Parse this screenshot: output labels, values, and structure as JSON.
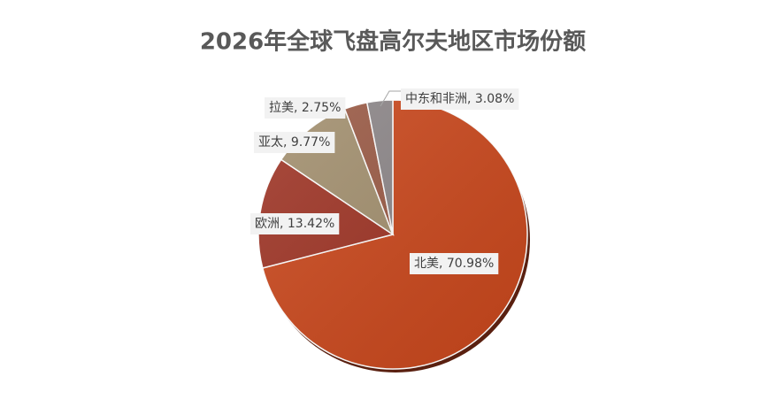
{
  "chart_data": {
    "type": "pie",
    "title": "2026年全球飞盘高尔夫地区市场份额",
    "values": [
      70.98,
      13.42,
      9.77,
      2.75,
      3.08
    ],
    "value_labels": [
      "北美, 70.98%",
      "欧洲, 13.42%",
      "亚太, 9.77%",
      "拉美, 2.75%",
      "中东和非洲, 3.08%"
    ],
    "colors": [
      "#c9471c",
      "#9e3425",
      "#a28f6e",
      "#9a5a45",
      "#8c8688"
    ]
  }
}
